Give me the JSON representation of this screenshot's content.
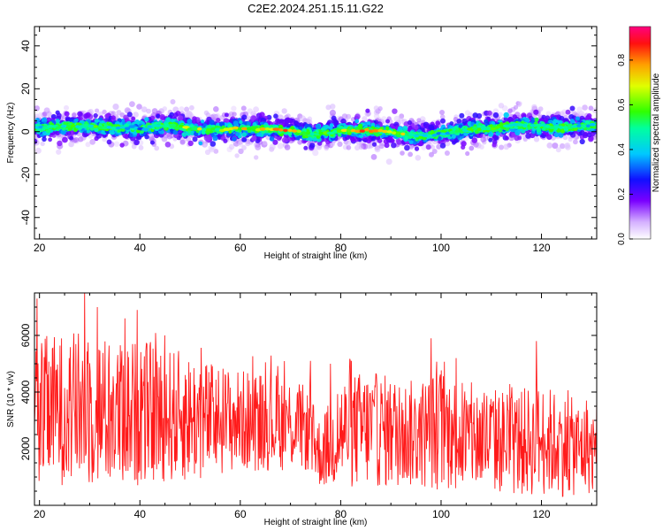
{
  "title": "C2E2.2024.251.15.11.G22",
  "chart_data": [
    {
      "type": "heatmap",
      "xlabel": "Height of straight line (km)",
      "ylabel": "Frequency (Hz)",
      "xlim": [
        19,
        131
      ],
      "ylim": [
        -50,
        49
      ],
      "xticks": [
        20,
        40,
        60,
        80,
        100,
        120
      ],
      "yticks": [
        40,
        20,
        0,
        -20,
        -40
      ],
      "colorbar": {
        "label": "Normalized spectral amplitude",
        "range": [
          0,
          0.95
        ],
        "ticks": [
          "0.0",
          "0.2",
          "0.4",
          "0.6",
          "0.8"
        ]
      },
      "ridge": {
        "x": [
          20,
          25,
          30,
          35,
          40,
          45,
          50,
          55,
          60,
          65,
          70,
          75,
          80,
          85,
          90,
          95,
          100,
          105,
          110,
          115,
          120,
          125,
          130
        ],
        "frequency": [
          2,
          2.5,
          2.5,
          2,
          1.5,
          3,
          1.5,
          1,
          1.5,
          1,
          0.5,
          -1,
          0.5,
          0.5,
          0,
          -2,
          -1,
          1,
          1.5,
          3,
          2.5,
          2,
          3
        ],
        "peak_amplitude": [
          0.5,
          0.55,
          0.6,
          0.5,
          0.4,
          0.6,
          0.7,
          0.65,
          0.75,
          0.8,
          0.9,
          0.5,
          0.7,
          0.85,
          0.9,
          0.5,
          0.45,
          0.55,
          0.6,
          0.5,
          0.55,
          0.5,
          0.5
        ]
      }
    },
    {
      "type": "line",
      "xlabel": "Height of straight line (km)",
      "ylabel": "SNR (10 * v/v)",
      "xlim": [
        19,
        131
      ],
      "ylim": [
        0,
        7500
      ],
      "xticks": [
        20,
        40,
        60,
        80,
        100,
        120
      ],
      "yticks": [
        2000,
        4000,
        6000
      ],
      "color": "#ff1a1a",
      "envelope": {
        "x": [
          19,
          25,
          30,
          35,
          40,
          45,
          50,
          55,
          60,
          65,
          70,
          73,
          76,
          80,
          85,
          90,
          95,
          100,
          105,
          110,
          115,
          120,
          125,
          131
        ],
        "mean": [
          3300,
          3400,
          3400,
          3200,
          3300,
          3200,
          3100,
          3000,
          3000,
          3000,
          2900,
          2700,
          1800,
          2600,
          2700,
          2600,
          2500,
          2700,
          2400,
          2300,
          2200,
          2300,
          2100,
          1900
        ],
        "spread": [
          2600,
          2700,
          2800,
          2600,
          2600,
          2400,
          2300,
          2000,
          1800,
          1800,
          1700,
          1500,
          1200,
          2000,
          2100,
          2000,
          1900,
          2200,
          2000,
          1900,
          1900,
          2000,
          1800,
          1500
        ]
      },
      "peaks": [
        {
          "x": 19.5,
          "y": 7300
        },
        {
          "x": 29,
          "y": 7600
        },
        {
          "x": 31.5,
          "y": 7000
        },
        {
          "x": 39.5,
          "y": 6900
        },
        {
          "x": 37,
          "y": 6600
        },
        {
          "x": 45,
          "y": 6000
        },
        {
          "x": 74,
          "y": 5100
        },
        {
          "x": 78,
          "y": 5000
        },
        {
          "x": 98,
          "y": 5900
        },
        {
          "x": 103,
          "y": 5200
        },
        {
          "x": 119,
          "y": 5800
        },
        {
          "x": 129,
          "y": 3700
        }
      ]
    }
  ]
}
